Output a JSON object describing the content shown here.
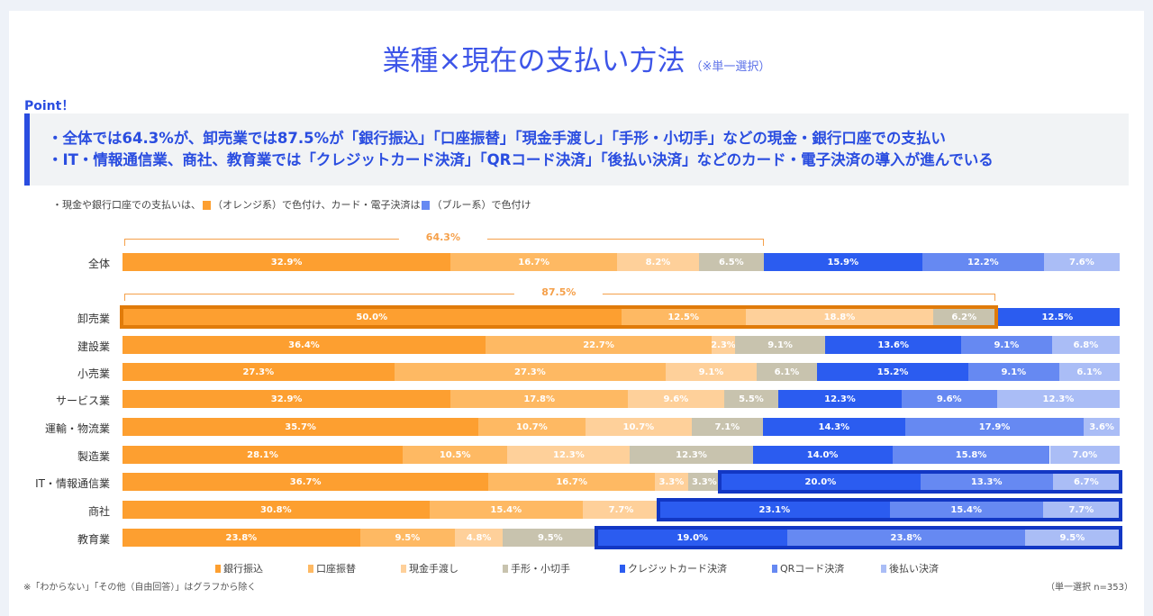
{
  "title": "業種×現在の支払い方法",
  "title_note": "（※単一選択）",
  "point_heading": "Point！",
  "points": [
    "・全体では64.3%が、卸売業では87.5%が「銀行振込」「口座振替」「現金手渡し」「手形・小切手」などの現金・銀行口座での支払い",
    "・IT・情報通信業、商社、教育業では「クレジットカード決済」「QRコード決済」「後払い決済」などのカード・電子決済の導入が進んでいる"
  ],
  "color_note": {
    "part1": "・現金や銀行口座での支払いは、",
    "part2": "（オレンジ系）で色付け、カード・電子決済は",
    "part3": "（ブルー系）で色付け"
  },
  "footnote_left": "※「わからない」「その他（自由回答）」はグラフから除く",
  "footnote_right": "（単一選択 n=353）",
  "highlight_colors": {
    "orange": "#e07b0a",
    "blue": "#1237c4"
  },
  "chart_data": {
    "type": "bar",
    "orientation": "horizontal",
    "stacked": "100%",
    "categories": [
      "全体",
      "卸売業",
      "建設業",
      "小売業",
      "サービス業",
      "運輸・物流業",
      "製造業",
      "IT・情報通信業",
      "商社",
      "教育業"
    ],
    "series": [
      {
        "name": "銀行振込",
        "color": "#fd9f30",
        "values": [
          32.9,
          50.0,
          36.4,
          27.3,
          32.9,
          35.7,
          28.1,
          36.7,
          30.8,
          23.8
        ]
      },
      {
        "name": "口座振替",
        "color": "#feb963",
        "values": [
          16.7,
          12.5,
          22.7,
          27.3,
          17.8,
          10.7,
          10.5,
          16.7,
          15.4,
          9.5
        ]
      },
      {
        "name": "現金手渡し",
        "color": "#fed09a",
        "values": [
          8.2,
          18.8,
          2.3,
          9.1,
          9.6,
          10.7,
          12.3,
          3.3,
          7.7,
          4.8
        ]
      },
      {
        "name": "手形・小切手",
        "color": "#c8c3ae",
        "values": [
          6.5,
          6.2,
          9.1,
          6.1,
          5.5,
          7.1,
          12.3,
          3.3,
          0,
          9.5
        ]
      },
      {
        "name": "クレジットカード決済",
        "color": "#2b5cf0",
        "values": [
          15.9,
          12.5,
          13.6,
          15.2,
          12.3,
          14.3,
          14.0,
          20.0,
          23.1,
          19.0
        ]
      },
      {
        "name": "QRコード決済",
        "color": "#6689f2",
        "values": [
          12.2,
          0,
          9.1,
          9.1,
          9.6,
          17.9,
          15.8,
          13.3,
          15.4,
          23.8
        ]
      },
      {
        "name": "後払い決済",
        "color": "#aabdf6",
        "values": [
          7.6,
          0,
          6.8,
          6.1,
          12.3,
          3.6,
          7.0,
          6.7,
          7.7,
          9.5
        ]
      }
    ],
    "annotations": [
      {
        "category": "全体",
        "label": "64.3%",
        "spans": "銀行振込–手形・小切手"
      },
      {
        "category": "卸売業",
        "label": "87.5%",
        "spans": "銀行振込–手形・小切手"
      }
    ],
    "highlighted": [
      {
        "category": "卸売業",
        "group": "cash",
        "color": "orange"
      },
      {
        "category": "IT・情報通信業",
        "group": "card",
        "color": "blue"
      },
      {
        "category": "商社",
        "group": "card",
        "color": "blue"
      },
      {
        "category": "教育業",
        "group": "card",
        "color": "blue"
      }
    ],
    "legend_position": "bottom",
    "grid": false
  }
}
